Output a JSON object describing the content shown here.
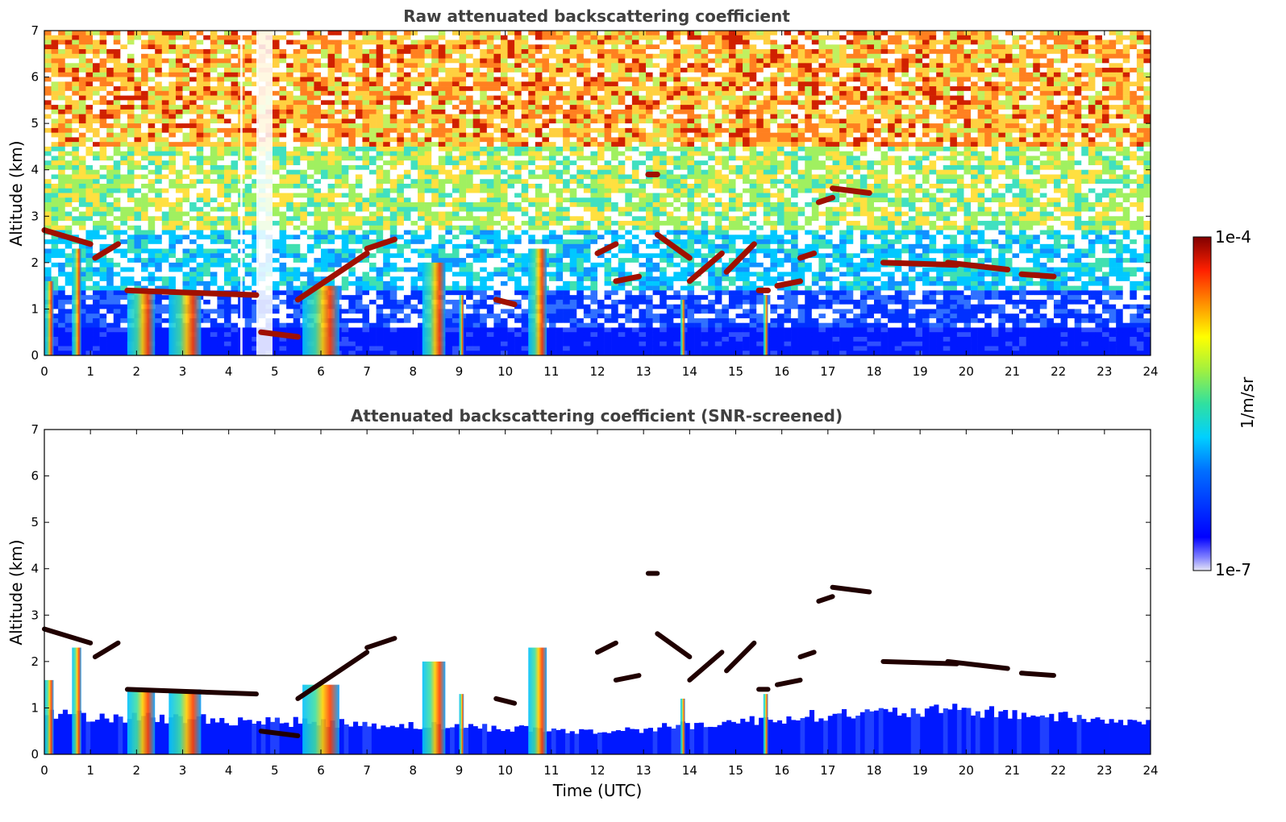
{
  "chart_data": [
    {
      "type": "heatmap",
      "title": "Raw attenuated backscattering coefficient",
      "xlabel": "",
      "ylabel": "Altitude (km)",
      "xlim": [
        0,
        24
      ],
      "ylim": [
        0,
        7
      ],
      "x_ticks": [
        "0",
        "1",
        "2",
        "3",
        "4",
        "5",
        "6",
        "7",
        "8",
        "9",
        "10",
        "11",
        "12",
        "13",
        "14",
        "15",
        "16",
        "17",
        "18",
        "19",
        "20",
        "21",
        "22",
        "23",
        "24"
      ],
      "y_ticks": [
        "0",
        "1",
        "2",
        "3",
        "4",
        "5",
        "6",
        "7"
      ],
      "noise_background": true,
      "no_data_gaps_utc": [
        [
          4.25,
          4.3
        ],
        [
          4.6,
          4.95
        ]
      ],
      "cloud_layers": [
        {
          "t": [
            0.0,
            1.0
          ],
          "alt": [
            2.7,
            2.4
          ]
        },
        {
          "t": [
            1.1,
            1.6
          ],
          "alt": [
            2.1,
            2.4
          ]
        },
        {
          "t": [
            1.8,
            4.6
          ],
          "alt": [
            1.4,
            1.3
          ]
        },
        {
          "t": [
            4.7,
            5.5
          ],
          "alt": [
            0.5,
            0.4
          ]
        },
        {
          "t": [
            5.5,
            7.0
          ],
          "alt": [
            1.2,
            2.2
          ]
        },
        {
          "t": [
            7.0,
            7.6
          ],
          "alt": [
            2.3,
            2.5
          ]
        },
        {
          "t": [
            9.8,
            10.2
          ],
          "alt": [
            1.2,
            1.1
          ]
        },
        {
          "t": [
            12.0,
            12.4
          ],
          "alt": [
            2.2,
            2.4
          ]
        },
        {
          "t": [
            12.4,
            12.9
          ],
          "alt": [
            1.6,
            1.7
          ]
        },
        {
          "t": [
            13.1,
            13.3
          ],
          "alt": [
            3.9,
            3.9
          ]
        },
        {
          "t": [
            13.3,
            14.0
          ],
          "alt": [
            2.6,
            2.1
          ]
        },
        {
          "t": [
            14.0,
            14.7
          ],
          "alt": [
            1.6,
            2.2
          ]
        },
        {
          "t": [
            14.8,
            15.4
          ],
          "alt": [
            1.8,
            2.4
          ]
        },
        {
          "t": [
            15.5,
            15.7
          ],
          "alt": [
            1.4,
            1.4
          ]
        },
        {
          "t": [
            15.9,
            16.4
          ],
          "alt": [
            1.5,
            1.6
          ]
        },
        {
          "t": [
            16.4,
            16.7
          ],
          "alt": [
            2.1,
            2.2
          ]
        },
        {
          "t": [
            16.8,
            17.1
          ],
          "alt": [
            3.3,
            3.4
          ]
        },
        {
          "t": [
            17.1,
            17.9
          ],
          "alt": [
            3.6,
            3.5
          ]
        },
        {
          "t": [
            18.2,
            19.8
          ],
          "alt": [
            2.0,
            1.95
          ]
        },
        {
          "t": [
            19.6,
            20.9
          ],
          "alt": [
            2.0,
            1.85
          ]
        },
        {
          "t": [
            21.2,
            21.9
          ],
          "alt": [
            1.75,
            1.7
          ]
        }
      ],
      "precip_columns": [
        {
          "t": [
            0.0,
            0.2
          ],
          "top": 1.6
        },
        {
          "t": [
            0.6,
            0.8
          ],
          "top": 2.3
        },
        {
          "t": [
            1.8,
            2.4
          ],
          "top": 1.4
        },
        {
          "t": [
            2.7,
            3.4
          ],
          "top": 1.4
        },
        {
          "t": [
            5.6,
            6.4
          ],
          "top": 1.5
        },
        {
          "t": [
            8.2,
            8.7
          ],
          "top": 2.0
        },
        {
          "t": [
            9.0,
            9.1
          ],
          "top": 1.3
        },
        {
          "t": [
            10.5,
            10.9
          ],
          "top": 2.3
        },
        {
          "t": [
            13.8,
            13.9
          ],
          "top": 1.2
        },
        {
          "t": [
            15.6,
            15.7
          ],
          "top": 1.3
        }
      ]
    },
    {
      "type": "heatmap",
      "title": "Attenuated backscattering coefficient (SNR-screened)",
      "xlabel": "Time (UTC)",
      "ylabel": "Altitude (km)",
      "xlim": [
        0,
        24
      ],
      "ylim": [
        0,
        7
      ],
      "x_ticks": [
        "0",
        "1",
        "2",
        "3",
        "4",
        "5",
        "6",
        "7",
        "8",
        "9",
        "10",
        "11",
        "12",
        "13",
        "14",
        "15",
        "16",
        "17",
        "18",
        "19",
        "20",
        "21",
        "22",
        "23",
        "24"
      ],
      "y_ticks": [
        "0",
        "1",
        "2",
        "3",
        "4",
        "5",
        "6",
        "7"
      ],
      "noise_background": false,
      "boundary_layer_top_km": [
        [
          0,
          0.9
        ],
        [
          6.5,
          0.7
        ],
        [
          10,
          0.6
        ],
        [
          12,
          0.5
        ],
        [
          17,
          0.9
        ],
        [
          20,
          1.0
        ],
        [
          24,
          0.7
        ]
      ]
    }
  ],
  "colorbar": {
    "max_label": "1e-4",
    "min_label": "1e-7",
    "unit_label": "1/m/sr",
    "colormap": "jet",
    "scale": "log"
  }
}
